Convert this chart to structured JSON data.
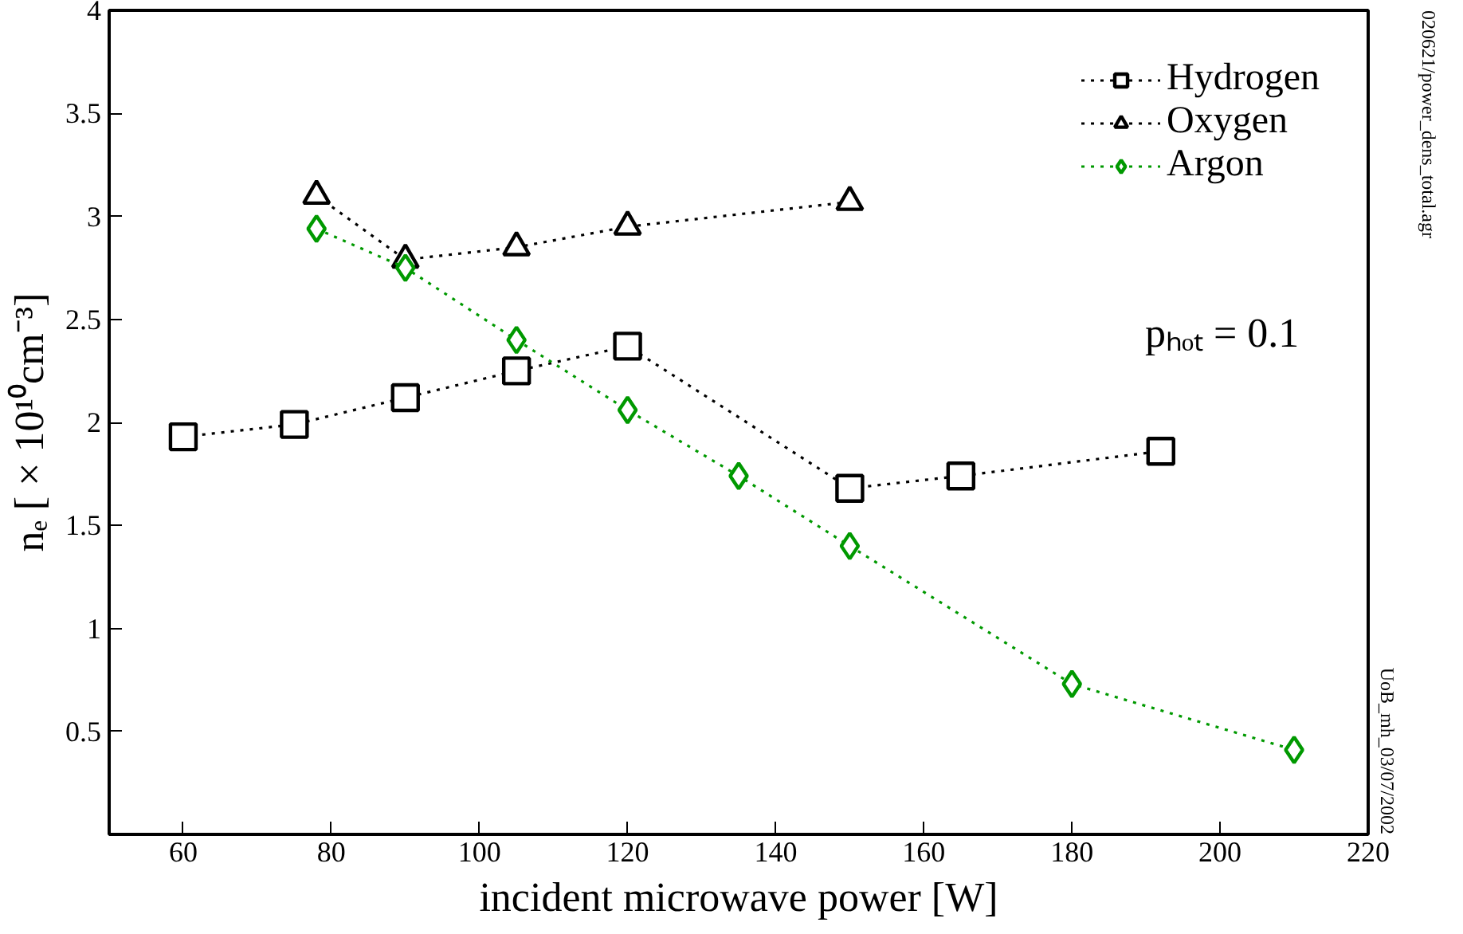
{
  "chart_data": {
    "type": "line",
    "xlabel": "incident microwave power [W]",
    "ylabel": "nₑ [ × 10¹⁰cm⁻³]",
    "xlim": [
      50,
      220
    ],
    "xticks": [
      60,
      80,
      100,
      120,
      140,
      160,
      180,
      200,
      220
    ],
    "ylim": [
      0,
      4
    ],
    "yticks": [
      {
        "value": 0,
        "label": null
      },
      0.5,
      1,
      1.5,
      2,
      2.5,
      3,
      3.5,
      4
    ],
    "grid": false,
    "legend": "top right",
    "line_style": "dotted",
    "series": [
      {
        "name": "Hydrogen",
        "color": "#000000",
        "marker": "square",
        "x": [
          60,
          75,
          90,
          105,
          120,
          150,
          165,
          192
        ],
        "values": [
          1.93,
          1.99,
          2.12,
          2.25,
          2.37,
          1.68,
          1.74,
          1.86
        ]
      },
      {
        "name": "Oxygen",
        "color": "#000000",
        "marker": "triangle",
        "x": [
          78,
          90,
          105,
          120,
          150
        ],
        "values": [
          3.1,
          2.79,
          2.85,
          2.95,
          3.07
        ]
      },
      {
        "name": "Argon",
        "color": "#009900",
        "marker": "diamond",
        "x": [
          78,
          90,
          105,
          120,
          135,
          150,
          180,
          210
        ],
        "values": [
          2.94,
          2.75,
          2.4,
          2.06,
          1.74,
          1.4,
          0.73,
          0.41
        ]
      }
    ],
    "annotations": [
      "pₕₒₜ = 0.1",
      "UoB_mh_03/07/2002",
      "020621/power_dens_total.agr"
    ]
  }
}
